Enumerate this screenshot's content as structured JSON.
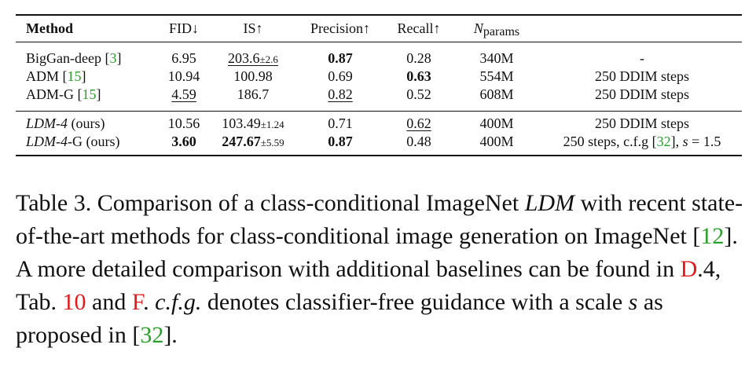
{
  "table": {
    "headers": {
      "method": "Method",
      "fid": "FID↓",
      "is": "IS↑",
      "precision": "Precision↑",
      "recall": "Recall↑",
      "nparams_main": "N",
      "nparams_sub": "params"
    },
    "rows": [
      {
        "method": "BigGan-deep",
        "cite": "3",
        "fid": "6.95",
        "is": "203.6",
        "is_pm": "±2.6",
        "precision": "0.87",
        "recall": "0.28",
        "nparams": "340M",
        "note": "-"
      },
      {
        "method": "ADM",
        "cite": "15",
        "fid": "10.94",
        "is": "100.98",
        "precision": "0.69",
        "recall": "0.63",
        "nparams": "554M",
        "note": "250 DDIM steps"
      },
      {
        "method": "ADM-G",
        "cite": "15",
        "fid": "4.59",
        "is": "186.7",
        "precision": "0.82",
        "recall": "0.52",
        "nparams": "608M",
        "note": "250 DDIM steps"
      },
      {
        "method_it": "LDM-4",
        "method_rest": " (ours)",
        "fid": "10.56",
        "is": "103.49",
        "is_pm": "±1.24",
        "precision": "0.71",
        "recall": "0.62",
        "nparams": "400M",
        "note": "250 DDIM steps"
      },
      {
        "method_it": "LDM-4",
        "method_rest": "-G (ours)",
        "fid": "3.60",
        "is": "247.67",
        "is_pm": "±5.59",
        "precision": "0.87",
        "recall": "0.48",
        "nparams": "400M",
        "note_a": "250 steps, c.f.g [",
        "note_cite": "32",
        "note_b": "], ",
        "note_s": "s",
        "note_c": " = 1.5"
      }
    ]
  },
  "caption": {
    "p1": "Table 3.  Comparison of a class-conditional ImageNet ",
    "p1_it": "LDM",
    "p2": " with recent state-of-the-art methods for class-conditional image generation on ImageNet [",
    "cite12": "12",
    "p3": "].  A more detailed comparison with additional baselines can be found in ",
    "ref_d4_red": "D",
    "ref_d4_rest": ".4",
    "p4": ", Tab. ",
    "ref_tab10": "10",
    "p5": " and ",
    "ref_f": "F",
    "p6": ". ",
    "cfg_it": "c.f.g.",
    "p7": " denotes classifier-free guidance with a scale ",
    "s_it": "s",
    "p8": " as proposed in  [",
    "cite32": "32",
    "p9": "]."
  }
}
